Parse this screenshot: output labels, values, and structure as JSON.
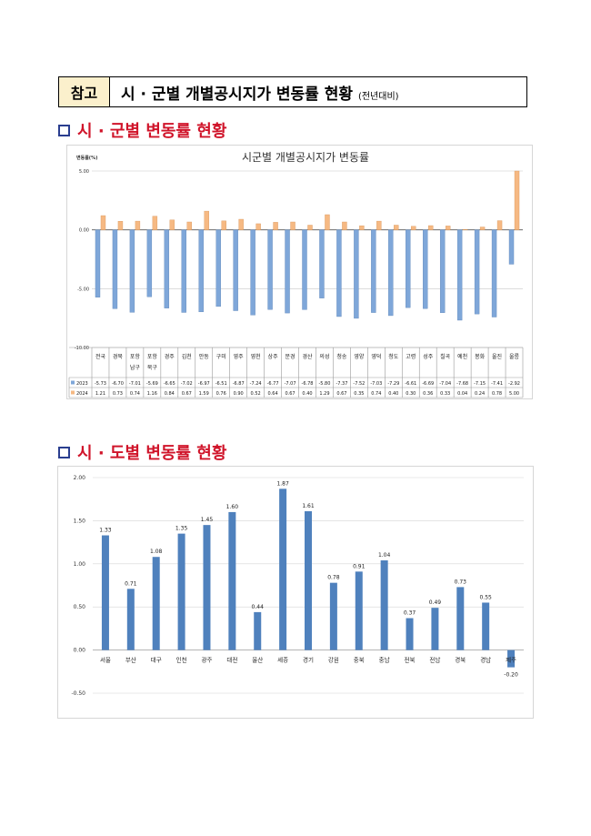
{
  "header": {
    "tag": "참고",
    "title": "시 · 군별 개별공시지가 변동률 현황",
    "subtitle": "(전년대비)"
  },
  "section1": {
    "title": "시 · 군별 변동률 현황"
  },
  "section2": {
    "title": "시 · 도별 변동률 현황"
  },
  "chart_data": [
    {
      "type": "bar",
      "title": "시군별 개별공시지가 변동률",
      "ylabel": "변동률(%)",
      "ylim": [
        -10,
        5
      ],
      "yticks": [
        "5.00",
        "0.00",
        "-5.00",
        "-10.00"
      ],
      "grid": true,
      "categories": [
        "전국",
        "경북",
        "포항 남구",
        "포항 북구",
        "경주",
        "김천",
        "안동",
        "구미",
        "영주",
        "영천",
        "상주",
        "문경",
        "경산",
        "의성",
        "청송",
        "영양",
        "영덕",
        "청도",
        "고령",
        "성주",
        "칠곡",
        "예천",
        "봉화",
        "울진",
        "울릉"
      ],
      "category_lines": [
        [
          "전국"
        ],
        [
          "경북"
        ],
        [
          "포항",
          "남구"
        ],
        [
          "포항",
          "북구"
        ],
        [
          "경주"
        ],
        [
          "김천"
        ],
        [
          "안동"
        ],
        [
          "구미"
        ],
        [
          "영주"
        ],
        [
          "영천"
        ],
        [
          "상주"
        ],
        [
          "문경"
        ],
        [
          "경산"
        ],
        [
          "의성"
        ],
        [
          "청송"
        ],
        [
          "영양"
        ],
        [
          "영덕"
        ],
        [
          "청도"
        ],
        [
          "고령"
        ],
        [
          "성주"
        ],
        [
          "칠곡"
        ],
        [
          "예천"
        ],
        [
          "봉화"
        ],
        [
          "울진"
        ],
        [
          "울릉"
        ]
      ],
      "series": [
        {
          "name": "2023",
          "color": "#7fa7d9",
          "values": [
            -5.73,
            -6.7,
            -7.01,
            -5.69,
            -6.65,
            -7.02,
            -6.97,
            -6.51,
            -6.87,
            -7.24,
            -6.77,
            -7.07,
            -6.78,
            -5.8,
            -7.37,
            -7.52,
            -7.03,
            -7.29,
            -6.61,
            -6.69,
            -7.04,
            -7.68,
            -7.15,
            -7.41,
            -2.92
          ]
        },
        {
          "name": "2024",
          "color": "#f6b983",
          "values": [
            1.21,
            0.73,
            0.74,
            1.16,
            0.84,
            0.67,
            1.59,
            0.76,
            0.9,
            0.52,
            0.64,
            0.67,
            0.4,
            1.29,
            0.67,
            0.35,
            0.74,
            0.4,
            0.3,
            0.36,
            0.33,
            0.04,
            0.24,
            0.78,
            5.0
          ]
        }
      ],
      "table": {
        "rows": [
          {
            "label": "2023",
            "cells": [
              "-5.73",
              "-6.70",
              "-7.01",
              "-5.69",
              "-6.65",
              "-7.02",
              "-6.97",
              "-6.51",
              "-6.87",
              "-7.24",
              "-6.77",
              "-7.07",
              "-6.78",
              "-5.80",
              "-7.37",
              "-7.52",
              "-7.03",
              "-7.29",
              "-6.61",
              "-6.69",
              "-7.04",
              "-7.68",
              "-7.15",
              "-7.41",
              "-2.92"
            ]
          },
          {
            "label": "2024",
            "cells": [
              "1.21",
              "0.73",
              "0.74",
              "1.16",
              "0.84",
              "0.67",
              "1.59",
              "0.76",
              "0.90",
              "0.52",
              "0.64",
              "0.67",
              "0.40",
              "1.29",
              "0.67",
              "0.35",
              "0.74",
              "0.40",
              "0.30",
              "0.36",
              "0.33",
              "0.04",
              "0.24",
              "0.78",
              "5.00"
            ]
          }
        ]
      }
    },
    {
      "type": "bar",
      "title": "",
      "ylim": [
        -0.5,
        2.0
      ],
      "yticks": [
        "2.00",
        "1.50",
        "1.00",
        "0.50",
        "0.00",
        "-0.50"
      ],
      "grid": true,
      "color": "#4f81bd",
      "categories": [
        "서울",
        "부산",
        "대구",
        "인천",
        "광주",
        "대전",
        "울산",
        "세종",
        "경기",
        "강원",
        "충북",
        "충남",
        "전북",
        "전남",
        "경북",
        "경남",
        "제주"
      ],
      "values": [
        1.33,
        0.71,
        1.08,
        1.35,
        1.45,
        1.6,
        0.44,
        1.87,
        1.61,
        0.78,
        0.91,
        1.04,
        0.37,
        0.49,
        0.73,
        0.55,
        -0.2
      ],
      "labels": [
        "1.33",
        "0.71",
        "1.08",
        "1.35",
        "1.45",
        "1.60",
        "0.44",
        "1.87",
        "1.61",
        "0.78",
        "0.91",
        "1.04",
        "0.37",
        "0.49",
        "0.73",
        "0.55",
        "-0.20"
      ]
    }
  ]
}
